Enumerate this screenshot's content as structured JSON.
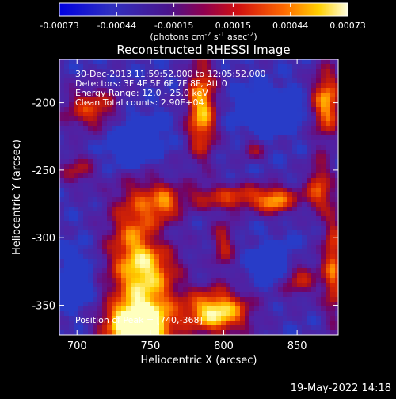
{
  "chart_data": {
    "type": "heatmap",
    "title": "Reconstructed RHESSI Image",
    "xlabel": "Heliocentric X (arcsec)",
    "ylabel": "Heliocentric Y (arcsec)",
    "xlim": [
      688,
      878
    ],
    "ylim": [
      -372,
      -168
    ],
    "xticks": [
      700,
      750,
      800,
      850
    ],
    "yticks": [
      -200,
      -250,
      -300,
      -350
    ],
    "colorbar": {
      "range": [
        -0.00073,
        0.00073
      ],
      "tick_values": [
        -0.00073,
        -0.00044,
        -0.00015,
        0.00015,
        0.00044,
        0.00073
      ],
      "tick_labels": [
        "-0.00073",
        "-0.00044",
        "-0.00015",
        "0.00015",
        "0.00044",
        "0.00073"
      ],
      "unit_label": "(photons cm",
      "unit_exp1": "-2",
      "unit_mid": " s",
      "unit_exp2": "-1",
      "unit_mid2": " asec",
      "unit_exp3": "-2",
      "unit_end": ")"
    },
    "annotations": [
      "30-Dec-2013 11:59:52.000 to 12:05:52.000",
      "Detectors: 3F 4F 5F 6F 7F 8F, Att 0",
      "Energy Range: 12.0 - 25.0 keV",
      "Clean     Total counts: 2.90E+04"
    ],
    "position_label": "Position of Peak = [740,-368]",
    "grid": false
  },
  "footer": {
    "timestamp": "19-May-2022 14:18"
  }
}
